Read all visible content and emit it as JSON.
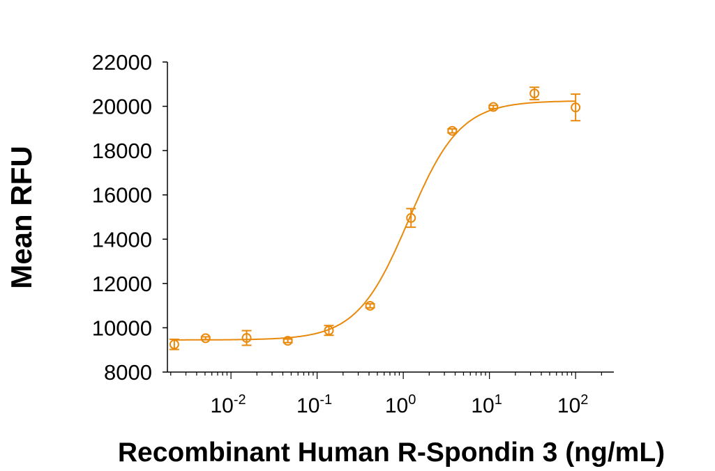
{
  "chart_data": {
    "type": "scatter",
    "title": "",
    "xlabel": "Recombinant Human R-Spondin 3 (ng/mL)",
    "ylabel": "Mean RFU",
    "x_scale": "log",
    "xlim": [
      0.00183,
      278
    ],
    "ylim": [
      8000,
      22000
    ],
    "y_ticks": [
      8000,
      10000,
      12000,
      14000,
      16000,
      18000,
      20000,
      22000
    ],
    "y_tick_labels": [
      "8000",
      "10000",
      "12000",
      "14000",
      "16000",
      "18000",
      "20000",
      "22000"
    ],
    "x_ticks": [
      0.01,
      0.1,
      1,
      10,
      100
    ],
    "x_tick_labels": [
      {
        "base": "10",
        "exp": "-2"
      },
      {
        "base": "10",
        "exp": "-1"
      },
      {
        "base": "10",
        "exp": "0"
      },
      {
        "base": "10",
        "exp": "1"
      },
      {
        "base": "10",
        "exp": "2"
      }
    ],
    "grid": false,
    "color": "#E8890C",
    "series": [
      {
        "x": [
          0.0022,
          0.00508,
          0.0152,
          0.0457,
          0.137,
          0.412,
          1.23,
          3.7,
          11.1,
          33.3,
          100
        ],
        "y": [
          9250,
          9530,
          9540,
          9410,
          9880,
          10990,
          14960,
          18890,
          19970,
          20580,
          19950
        ],
        "error": [
          230,
          60,
          330,
          80,
          220,
          90,
          420,
          90,
          70,
          280,
          600
        ]
      }
    ],
    "fit": {
      "type": "4PL",
      "bottom": 9450,
      "top": 20250,
      "ec50": 1.15,
      "hill": 1.45
    }
  }
}
